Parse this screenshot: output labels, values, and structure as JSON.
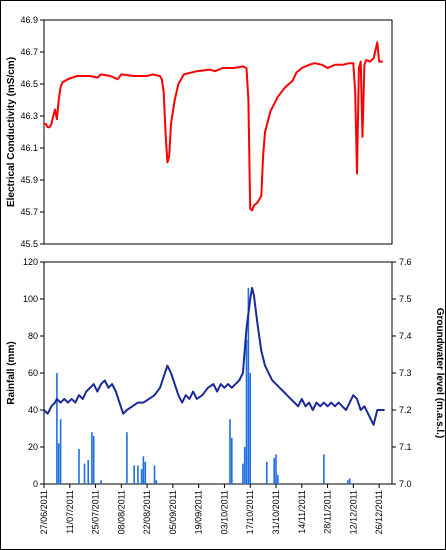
{
  "chart_data": [
    {
      "type": "line",
      "ylabel": "Electrical Conductivity (mS/cm)",
      "ylim": [
        45.5,
        46.9
      ],
      "yticks": [
        "46.9",
        "46.7",
        "46.5",
        "46.3",
        "46.1",
        "45.9",
        "45.7",
        "45.5"
      ],
      "xlim": [
        "2011-06-27",
        "2012-01-02"
      ],
      "grid": false,
      "series": [
        {
          "color": "#ff0000",
          "points": [
            [
              "2011-06-27",
              46.25
            ],
            [
              "2011-06-28",
              46.25
            ],
            [
              "2011-06-29",
              46.23
            ],
            [
              "2011-06-30",
              46.23
            ],
            [
              "2011-07-01",
              46.25
            ],
            [
              "2011-07-02",
              46.3
            ],
            [
              "2011-07-03",
              46.34
            ],
            [
              "2011-07-04",
              46.28
            ],
            [
              "2011-07-05",
              46.4
            ],
            [
              "2011-07-06",
              46.48
            ],
            [
              "2011-07-07",
              46.51
            ],
            [
              "2011-07-10",
              46.53
            ],
            [
              "2011-07-15",
              46.55
            ],
            [
              "2011-07-22",
              46.55
            ],
            [
              "2011-07-26",
              46.54
            ],
            [
              "2011-07-28",
              46.56
            ],
            [
              "2011-08-02",
              46.55
            ],
            [
              "2011-08-06",
              46.53
            ],
            [
              "2011-08-08",
              46.56
            ],
            [
              "2011-08-15",
              46.55
            ],
            [
              "2011-08-22",
              46.55
            ],
            [
              "2011-08-25",
              46.56
            ],
            [
              "2011-08-29",
              46.55
            ],
            [
              "2011-08-30",
              46.53
            ],
            [
              "2011-08-31",
              46.45
            ],
            [
              "2011-09-01",
              46.2
            ],
            [
              "2011-09-02",
              46.01
            ],
            [
              "2011-09-03",
              46.05
            ],
            [
              "2011-09-04",
              46.25
            ],
            [
              "2011-09-06",
              46.4
            ],
            [
              "2011-09-08",
              46.5
            ],
            [
              "2011-09-11",
              46.56
            ],
            [
              "2011-09-18",
              46.58
            ],
            [
              "2011-09-25",
              46.59
            ],
            [
              "2011-09-28",
              46.58
            ],
            [
              "2011-10-02",
              46.6
            ],
            [
              "2011-10-08",
              46.6
            ],
            [
              "2011-10-13",
              46.61
            ],
            [
              "2011-10-15",
              46.6
            ],
            [
              "2011-10-16",
              46.4
            ],
            [
              "2011-10-17",
              45.72
            ],
            [
              "2011-10-18",
              45.71
            ],
            [
              "2011-10-19",
              45.74
            ],
            [
              "2011-10-21",
              45.76
            ],
            [
              "2011-10-23",
              45.8
            ],
            [
              "2011-10-24",
              46.05
            ],
            [
              "2011-10-25",
              46.2
            ],
            [
              "2011-10-28",
              46.33
            ],
            [
              "2011-11-01",
              46.42
            ],
            [
              "2011-11-05",
              46.48
            ],
            [
              "2011-11-09",
              46.52
            ],
            [
              "2011-11-11",
              46.57
            ],
            [
              "2011-11-14",
              46.6
            ],
            [
              "2011-11-18",
              46.62
            ],
            [
              "2011-11-21",
              46.63
            ],
            [
              "2011-11-25",
              46.62
            ],
            [
              "2011-11-28",
              46.6
            ],
            [
              "2011-12-02",
              46.62
            ],
            [
              "2011-12-06",
              46.62
            ],
            [
              "2011-12-10",
              46.63
            ],
            [
              "2011-12-12",
              46.63
            ],
            [
              "2011-12-13",
              46.45
            ],
            [
              "2011-12-14",
              45.94
            ],
            [
              "2011-12-15",
              46.6
            ],
            [
              "2011-12-16",
              46.64
            ],
            [
              "2011-12-17",
              46.17
            ],
            [
              "2011-12-18",
              46.62
            ],
            [
              "2011-12-19",
              46.65
            ],
            [
              "2011-12-21",
              46.64
            ],
            [
              "2011-12-23",
              46.66
            ],
            [
              "2011-12-25",
              46.76
            ],
            [
              "2011-12-26",
              46.64
            ],
            [
              "2011-12-28",
              46.64
            ]
          ]
        }
      ]
    },
    {
      "type": "bar+line",
      "ylabel": "Rainfall (mm)",
      "ylim": [
        0,
        120
      ],
      "yticks": [
        "120",
        "100",
        "80",
        "60",
        "40",
        "20",
        "0"
      ],
      "y2label": "Groundwater level (m.a.s.l.)",
      "y2lim": [
        7.0,
        7.6
      ],
      "y2ticks": [
        "7.6",
        "7.5",
        "7.4",
        "7.3",
        "7.2",
        "7.1",
        "7.0"
      ],
      "xlim": [
        "2011-06-27",
        "2012-01-02"
      ],
      "xticks": [
        "27/06/2011",
        "11/07/2011",
        "25/07/2011",
        "08/08/2011",
        "22/08/2011",
        "05/09/2011",
        "19/09/2011",
        "03/10/2011",
        "17/10/2011",
        "31/10/2011",
        "14/11/2011",
        "28/11/2011",
        "12/12/2011",
        "26/12/2011"
      ],
      "grid": false,
      "series": [
        {
          "kind": "bar",
          "color": "#1f6fe0",
          "points": [
            [
              "2011-07-04",
              60
            ],
            [
              "2011-07-05",
              22
            ],
            [
              "2011-07-06",
              35
            ],
            [
              "2011-07-16",
              19
            ],
            [
              "2011-07-19",
              11
            ],
            [
              "2011-07-21",
              13
            ],
            [
              "2011-07-23",
              28
            ],
            [
              "2011-07-24",
              26
            ],
            [
              "2011-07-28",
              2
            ],
            [
              "2011-08-11",
              28
            ],
            [
              "2011-08-15",
              10
            ],
            [
              "2011-08-17",
              10
            ],
            [
              "2011-08-19",
              8
            ],
            [
              "2011-08-20",
              15
            ],
            [
              "2011-08-21",
              12
            ],
            [
              "2011-08-26",
              10
            ],
            [
              "2011-08-27",
              2
            ],
            [
              "2011-10-06",
              35
            ],
            [
              "2011-10-07",
              25
            ],
            [
              "2011-10-13",
              11
            ],
            [
              "2011-10-14",
              20
            ],
            [
              "2011-10-15",
              78
            ],
            [
              "2011-10-16",
              106
            ],
            [
              "2011-10-17",
              60
            ],
            [
              "2011-10-26",
              12
            ],
            [
              "2011-10-30",
              14
            ],
            [
              "2011-10-31",
              16
            ],
            [
              "2011-11-01",
              5
            ],
            [
              "2011-11-26",
              16
            ],
            [
              "2011-12-09",
              2
            ],
            [
              "2011-12-10",
              3
            ]
          ]
        },
        {
          "kind": "line",
          "axis": "y2",
          "color": "#1c2a99",
          "points": [
            [
              "2011-06-27",
              7.2
            ],
            [
              "2011-06-29",
              7.19
            ],
            [
              "2011-07-01",
              7.21
            ],
            [
              "2011-07-03",
              7.22
            ],
            [
              "2011-07-04",
              7.23
            ],
            [
              "2011-07-06",
              7.22
            ],
            [
              "2011-07-08",
              7.23
            ],
            [
              "2011-07-10",
              7.22
            ],
            [
              "2011-07-12",
              7.23
            ],
            [
              "2011-07-14",
              7.22
            ],
            [
              "2011-07-16",
              7.24
            ],
            [
              "2011-07-18",
              7.23
            ],
            [
              "2011-07-20",
              7.25
            ],
            [
              "2011-07-22",
              7.26
            ],
            [
              "2011-07-24",
              7.27
            ],
            [
              "2011-07-26",
              7.25
            ],
            [
              "2011-07-28",
              7.27
            ],
            [
              "2011-07-30",
              7.28
            ],
            [
              "2011-08-01",
              7.26
            ],
            [
              "2011-08-03",
              7.27
            ],
            [
              "2011-08-05",
              7.25
            ],
            [
              "2011-08-07",
              7.22
            ],
            [
              "2011-08-09",
              7.19
            ],
            [
              "2011-08-11",
              7.2
            ],
            [
              "2011-08-14",
              7.21
            ],
            [
              "2011-08-17",
              7.22
            ],
            [
              "2011-08-20",
              7.22
            ],
            [
              "2011-08-23",
              7.23
            ],
            [
              "2011-08-26",
              7.24
            ],
            [
              "2011-08-29",
              7.26
            ],
            [
              "2011-08-31",
              7.29
            ],
            [
              "2011-09-02",
              7.32
            ],
            [
              "2011-09-04",
              7.3
            ],
            [
              "2011-09-06",
              7.27
            ],
            [
              "2011-09-08",
              7.24
            ],
            [
              "2011-09-10",
              7.22
            ],
            [
              "2011-09-12",
              7.24
            ],
            [
              "2011-09-14",
              7.23
            ],
            [
              "2011-09-16",
              7.25
            ],
            [
              "2011-09-18",
              7.23
            ],
            [
              "2011-09-21",
              7.24
            ],
            [
              "2011-09-24",
              7.26
            ],
            [
              "2011-09-27",
              7.27
            ],
            [
              "2011-09-29",
              7.25
            ],
            [
              "2011-10-01",
              7.27
            ],
            [
              "2011-10-03",
              7.26
            ],
            [
              "2011-10-05",
              7.27
            ],
            [
              "2011-10-07",
              7.26
            ],
            [
              "2011-10-09",
              7.27
            ],
            [
              "2011-10-11",
              7.28
            ],
            [
              "2011-10-13",
              7.3
            ],
            [
              "2011-10-15",
              7.42
            ],
            [
              "2011-10-17",
              7.5
            ],
            [
              "2011-10-18",
              7.53
            ],
            [
              "2011-10-19",
              7.51
            ],
            [
              "2011-10-21",
              7.43
            ],
            [
              "2011-10-23",
              7.36
            ],
            [
              "2011-10-25",
              7.32
            ],
            [
              "2011-10-27",
              7.3
            ],
            [
              "2011-10-29",
              7.28
            ],
            [
              "2011-10-31",
              7.27
            ],
            [
              "2011-11-02",
              7.26
            ],
            [
              "2011-11-04",
              7.25
            ],
            [
              "2011-11-06",
              7.24
            ],
            [
              "2011-11-08",
              7.23
            ],
            [
              "2011-11-10",
              7.22
            ],
            [
              "2011-11-12",
              7.21
            ],
            [
              "2011-11-14",
              7.23
            ],
            [
              "2011-11-16",
              7.21
            ],
            [
              "2011-11-18",
              7.22
            ],
            [
              "2011-11-20",
              7.2
            ],
            [
              "2011-11-22",
              7.22
            ],
            [
              "2011-11-24",
              7.21
            ],
            [
              "2011-11-26",
              7.22
            ],
            [
              "2011-11-28",
              7.21
            ],
            [
              "2011-11-30",
              7.22
            ],
            [
              "2011-12-02",
              7.21
            ],
            [
              "2011-12-04",
              7.22
            ],
            [
              "2011-12-06",
              7.21
            ],
            [
              "2011-12-08",
              7.2
            ],
            [
              "2011-12-10",
              7.22
            ],
            [
              "2011-12-12",
              7.24
            ],
            [
              "2011-12-14",
              7.23
            ],
            [
              "2011-12-16",
              7.2
            ],
            [
              "2011-12-18",
              7.21
            ],
            [
              "2011-12-20",
              7.19
            ],
            [
              "2011-12-22",
              7.17
            ],
            [
              "2011-12-23",
              7.16
            ],
            [
              "2011-12-25",
              7.2
            ],
            [
              "2011-12-27",
              7.2
            ],
            [
              "2011-12-29",
              7.2
            ]
          ]
        }
      ]
    }
  ]
}
